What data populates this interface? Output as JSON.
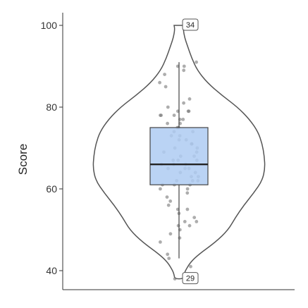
{
  "chart_data": {
    "type": "violin",
    "title": "",
    "xlabel": "",
    "ylabel": "Score",
    "ylim": [
      37,
      103
    ],
    "yticks": [
      40,
      60,
      80,
      100
    ],
    "grid": false,
    "colors": {
      "box_fill": "#aecbf2",
      "box_stroke": "#444444",
      "violin_stroke": "#555555",
      "point": "#777777",
      "axis": "#333333"
    },
    "box": {
      "q1": 61,
      "median": 66,
      "q3": 75,
      "whisker_low": 43,
      "whisker_high": 91
    },
    "violin_range": [
      38,
      100
    ],
    "outlier_labels": [
      {
        "label": "34",
        "y": 100
      },
      {
        "label": "29",
        "y": 38
      }
    ],
    "points": [
      91,
      90,
      90,
      89,
      88,
      86,
      85,
      82,
      81,
      80,
      79,
      79,
      79,
      78,
      78,
      78,
      77,
      77,
      76,
      76,
      75,
      75,
      74,
      74,
      73,
      73,
      72,
      72,
      71,
      71,
      70,
      70,
      69,
      69,
      68,
      68,
      67,
      67,
      67,
      66,
      66,
      66,
      65,
      65,
      65,
      64,
      64,
      63,
      63,
      62,
      62,
      62,
      61,
      61,
      61,
      60,
      60,
      59,
      58,
      57,
      56,
      55,
      55,
      54,
      53,
      52,
      52,
      51,
      51,
      50,
      49,
      48,
      47,
      44,
      43,
      41,
      38
    ]
  }
}
